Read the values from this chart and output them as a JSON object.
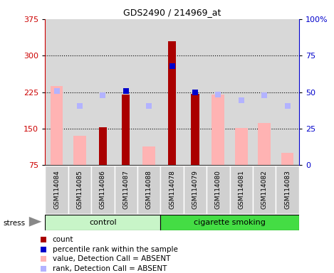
{
  "title": "GDS2490 / 214969_at",
  "samples": [
    "GSM114084",
    "GSM114085",
    "GSM114086",
    "GSM114087",
    "GSM114088",
    "GSM114078",
    "GSM114079",
    "GSM114080",
    "GSM114081",
    "GSM114082",
    "GSM114083"
  ],
  "count_values": [
    null,
    null,
    153,
    220,
    null,
    330,
    222,
    null,
    null,
    null,
    null
  ],
  "count_color": "#aa0000",
  "absent_value_values": [
    238,
    136,
    null,
    null,
    113,
    null,
    null,
    220,
    152,
    162,
    100
  ],
  "absent_value_color": "#ffb3b3",
  "rank_absent_values": [
    228,
    197,
    218,
    null,
    197,
    null,
    null,
    220,
    208,
    218,
    197
  ],
  "rank_absent_color": "#b3b3ff",
  "percentile_values": [
    null,
    null,
    null,
    228,
    null,
    278,
    225,
    null,
    null,
    null,
    null
  ],
  "percentile_color": "#0000cc",
  "ylim_left": [
    75,
    375
  ],
  "ylim_right": [
    0,
    100
  ],
  "yticks_left": [
    75,
    150,
    225,
    300,
    375
  ],
  "yticks_right": [
    0,
    25,
    50,
    75,
    100
  ],
  "yticklabels_right": [
    "0",
    "25",
    "50",
    "75",
    "100%"
  ],
  "color_left": "#cc0000",
  "color_right": "#0000cc",
  "control_color": "#c8f5c8",
  "smoke_color": "#44dd44",
  "bar_width": 0.35,
  "absent_bar_width": 0.55,
  "marker_size": 6,
  "n_control": 5,
  "legend_items": [
    [
      "#aa0000",
      "count"
    ],
    [
      "#0000cc",
      "percentile rank within the sample"
    ],
    [
      "#ffb3b3",
      "value, Detection Call = ABSENT"
    ],
    [
      "#b3b3ff",
      "rank, Detection Call = ABSENT"
    ]
  ]
}
